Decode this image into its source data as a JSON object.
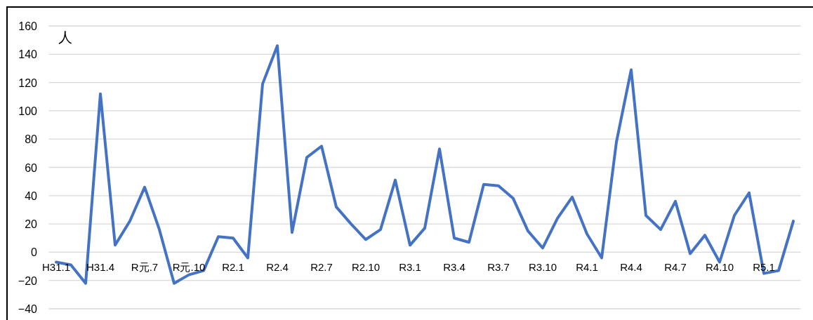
{
  "chart_data": {
    "type": "line",
    "ylabel": "人",
    "categories": [
      "H31.1",
      null,
      null,
      "H31.4",
      null,
      null,
      "R元.7",
      null,
      null,
      "R元.10",
      null,
      null,
      "R2.1",
      null,
      null,
      "R2.4",
      null,
      null,
      "R2.7",
      null,
      null,
      "R2.10",
      null,
      null,
      "R3.1",
      null,
      null,
      "R3.4",
      null,
      null,
      "R3.7",
      null,
      null,
      "R3.10",
      null,
      null,
      "R4.1",
      null,
      null,
      "R4.4",
      null,
      null,
      "R4.7",
      null,
      null,
      "R4.10",
      null,
      null,
      "R5.1",
      null,
      null
    ],
    "series": [
      {
        "color": "#4472c4",
        "values": [
          -7,
          -9,
          -22,
          112,
          5,
          22,
          46,
          16,
          -22,
          -16,
          -13,
          11,
          10,
          -4,
          119,
          146,
          14,
          67,
          75,
          32,
          20,
          9,
          16,
          51,
          5,
          17,
          73,
          10,
          7,
          48,
          47,
          38,
          15,
          3,
          24,
          39,
          13,
          -4,
          78,
          129,
          26,
          16,
          36,
          -1,
          12,
          -7,
          26,
          42,
          -15,
          -13,
          22
        ]
      }
    ],
    "ylim": [
      -40,
      160
    ],
    "yticks": [
      -40,
      -20,
      0,
      20,
      40,
      60,
      80,
      100,
      120,
      140,
      160
    ],
    "grid": "y",
    "marker": "none",
    "line_style": "solid"
  }
}
